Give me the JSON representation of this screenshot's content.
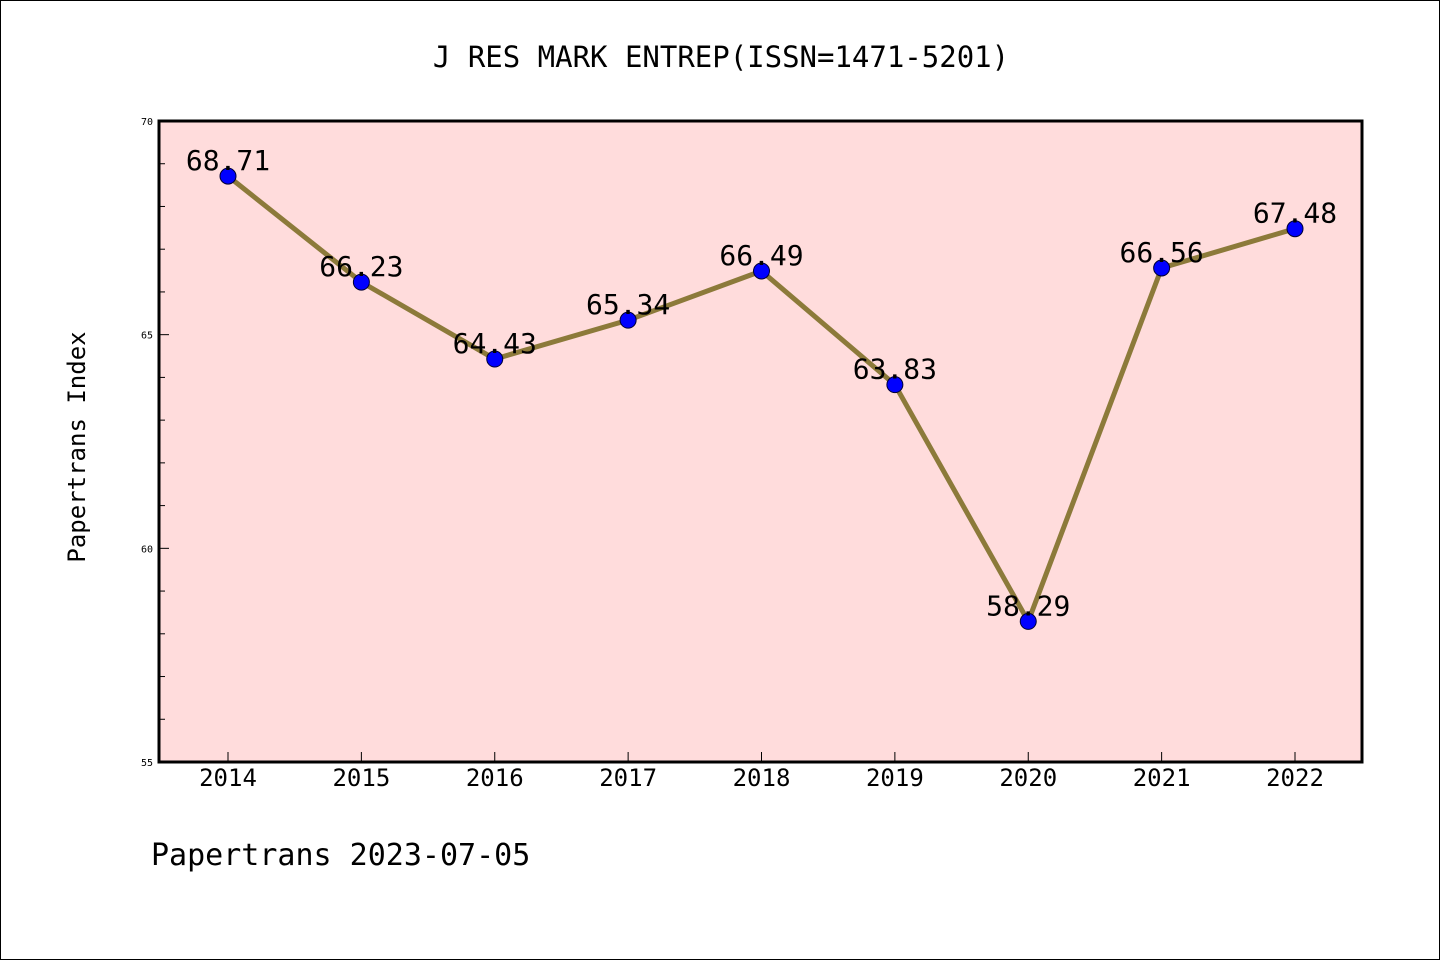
{
  "chart_data": {
    "type": "line",
    "title": "J RES MARK ENTREP(ISSN=1471-5201)",
    "xlabel": "",
    "ylabel": "Papertrans Index",
    "categories": [
      "2014",
      "2015",
      "2016",
      "2017",
      "2018",
      "2019",
      "2020",
      "2021",
      "2022"
    ],
    "series": [
      {
        "values": [
          68.71,
          66.23,
          64.43,
          65.34,
          66.49,
          63.83,
          58.29,
          66.56,
          67.48
        ],
        "labels": [
          "68.71",
          "66.23",
          "64.43",
          "65.34",
          "66.49",
          "63.83",
          "58.29",
          "66.56",
          "67.48"
        ],
        "line_color": "#8c7a3a",
        "marker_color": "#0000ff"
      }
    ],
    "ylim": [
      55,
      70
    ],
    "yticks": [
      55,
      60,
      65,
      70
    ],
    "ytick_labels": [
      "55",
      "60",
      "65",
      "70"
    ],
    "grid": false,
    "legend": "none",
    "plot_background": "#ffdcdc"
  },
  "footer": {
    "text": "Papertrans 2023-07-05"
  }
}
